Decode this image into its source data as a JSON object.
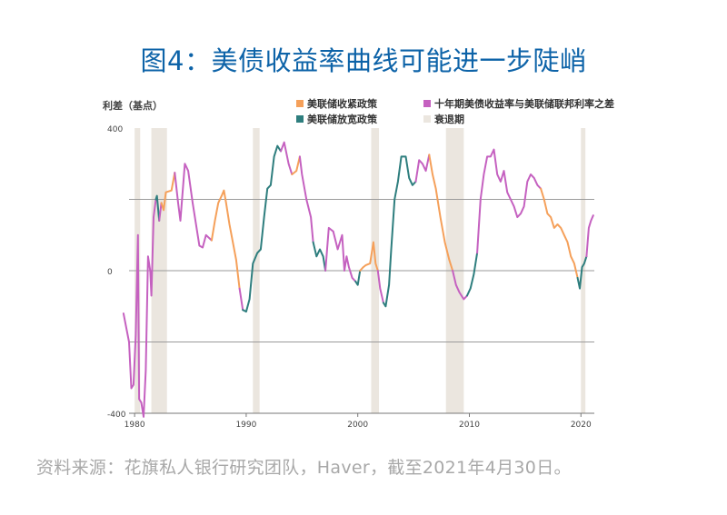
{
  "title": "图4：美债收益率曲线可能进一步陡峭",
  "source": "资料来源：花旗私人银行研究团队，Haver，截至2021年4月30日。",
  "colors": {
    "title": "#0d63a8",
    "tightening": "#f5a05a",
    "easing": "#2e7e7e",
    "spread": "#c561c0",
    "recession": "#ebe6df"
  },
  "chart_data": {
    "type": "line",
    "ylabel": "利差（基点）",
    "ylim": [
      -400,
      400
    ],
    "xlim": [
      1979.5,
      2021.2
    ],
    "y_ticks": [
      400,
      0,
      -400
    ],
    "y_gridlines": [
      200,
      0,
      -200
    ],
    "x_ticks": [
      1980,
      1990,
      2000,
      2010,
      2020
    ],
    "legend": [
      {
        "label": "美联储收紧政策",
        "key": "tightening"
      },
      {
        "label": "十年期美债收益率与美联储联邦利率之差",
        "key": "spread"
      },
      {
        "label": "美联储放宽政策",
        "key": "easing"
      },
      {
        "label": "衰退期",
        "key": "recession"
      }
    ],
    "recessions": [
      [
        1980.0,
        1980.5
      ],
      [
        1981.5,
        1982.9
      ],
      [
        1990.6,
        1991.2
      ],
      [
        2001.2,
        2001.9
      ],
      [
        2007.9,
        2009.5
      ],
      [
        2020.0,
        2020.4
      ]
    ],
    "segments": [
      {
        "phase": "spread",
        "points": [
          [
            1979.0,
            -120
          ],
          [
            1979.5,
            -200
          ],
          [
            1979.7,
            -330
          ],
          [
            1979.9,
            -320
          ],
          [
            1980.1,
            -180
          ],
          [
            1980.3,
            100
          ],
          [
            1980.4,
            -360
          ],
          [
            1980.6,
            -370
          ],
          [
            1980.8,
            -410
          ],
          [
            1981.0,
            -280
          ],
          [
            1981.2,
            40
          ],
          [
            1981.4,
            0
          ],
          [
            1981.5,
            -70
          ],
          [
            1981.7,
            150
          ],
          [
            1981.9,
            200
          ]
        ]
      },
      {
        "phase": "easing",
        "points": [
          [
            1981.9,
            200
          ],
          [
            1982.0,
            210
          ],
          [
            1982.2,
            140
          ]
        ]
      },
      {
        "phase": "spread",
        "points": [
          [
            1982.2,
            140
          ],
          [
            1982.4,
            190
          ]
        ]
      },
      {
        "phase": "tightening",
        "points": [
          [
            1982.4,
            190
          ],
          [
            1982.6,
            170
          ],
          [
            1982.8,
            220
          ],
          [
            1983.3,
            225
          ],
          [
            1983.6,
            275
          ]
        ]
      },
      {
        "phase": "spread",
        "points": [
          [
            1983.6,
            275
          ],
          [
            1983.9,
            190
          ],
          [
            1984.1,
            140
          ],
          [
            1984.5,
            300
          ],
          [
            1984.8,
            280
          ],
          [
            1985.2,
            190
          ],
          [
            1985.5,
            130
          ],
          [
            1985.8,
            70
          ],
          [
            1986.1,
            65
          ],
          [
            1986.4,
            100
          ],
          [
            1986.9,
            85
          ]
        ]
      },
      {
        "phase": "tightening",
        "points": [
          [
            1986.9,
            85
          ],
          [
            1987.2,
            140
          ],
          [
            1987.5,
            190
          ],
          [
            1987.8,
            210
          ],
          [
            1988.0,
            225
          ],
          [
            1988.2,
            190
          ],
          [
            1988.5,
            130
          ],
          [
            1988.8,
            80
          ],
          [
            1989.1,
            30
          ],
          [
            1989.4,
            -50
          ]
        ]
      },
      {
        "phase": "spread",
        "points": [
          [
            1989.4,
            -50
          ],
          [
            1989.7,
            -110
          ]
        ]
      },
      {
        "phase": "easing",
        "points": [
          [
            1989.7,
            -110
          ],
          [
            1990.0,
            -115
          ],
          [
            1990.3,
            -80
          ],
          [
            1990.6,
            20
          ],
          [
            1991.0,
            50
          ],
          [
            1991.3,
            60
          ],
          [
            1991.6,
            150
          ],
          [
            1991.9,
            230
          ],
          [
            1992.2,
            240
          ],
          [
            1992.5,
            320
          ],
          [
            1992.8,
            350
          ],
          [
            1993.1,
            335
          ]
        ]
      },
      {
        "phase": "spread",
        "points": [
          [
            1993.1,
            335
          ],
          [
            1993.4,
            360
          ],
          [
            1993.8,
            300
          ],
          [
            1994.1,
            270
          ]
        ]
      },
      {
        "phase": "tightening",
        "points": [
          [
            1994.1,
            270
          ],
          [
            1994.5,
            280
          ],
          [
            1994.8,
            320
          ]
        ]
      },
      {
        "phase": "spread",
        "points": [
          [
            1994.8,
            320
          ],
          [
            1995.0,
            270
          ],
          [
            1995.4,
            200
          ],
          [
            1995.8,
            150
          ],
          [
            1996.0,
            80
          ]
        ]
      },
      {
        "phase": "easing",
        "points": [
          [
            1996.0,
            80
          ],
          [
            1996.3,
            40
          ],
          [
            1996.6,
            60
          ],
          [
            1996.9,
            40
          ],
          [
            1997.1,
            0
          ]
        ]
      },
      {
        "phase": "spread",
        "points": [
          [
            1997.1,
            0
          ],
          [
            1997.4,
            120
          ],
          [
            1997.8,
            110
          ],
          [
            1998.2,
            60
          ],
          [
            1998.6,
            100
          ],
          [
            1998.8,
            0
          ],
          [
            1999.0,
            40
          ],
          [
            1999.2,
            10
          ],
          [
            1999.5,
            -20
          ],
          [
            1999.8,
            -30
          ]
        ]
      },
      {
        "phase": "easing",
        "points": [
          [
            1999.8,
            -30
          ],
          [
            2000.0,
            -40
          ],
          [
            2000.2,
            0
          ]
        ]
      },
      {
        "phase": "tightening",
        "points": [
          [
            2000.2,
            0
          ],
          [
            2000.5,
            10
          ],
          [
            2000.7,
            15
          ],
          [
            2001.1,
            20
          ],
          [
            2001.4,
            80
          ],
          [
            2001.6,
            20
          ],
          [
            2001.8,
            0
          ]
        ]
      },
      {
        "phase": "spread",
        "points": [
          [
            2001.8,
            0
          ],
          [
            2002.0,
            -50
          ],
          [
            2002.3,
            -90
          ]
        ]
      },
      {
        "phase": "easing",
        "points": [
          [
            2002.3,
            -90
          ],
          [
            2002.5,
            -100
          ],
          [
            2002.8,
            -40
          ],
          [
            2003.0,
            60
          ],
          [
            2003.3,
            200
          ],
          [
            2003.6,
            250
          ],
          [
            2003.9,
            320
          ],
          [
            2004.3,
            320
          ],
          [
            2004.6,
            260
          ],
          [
            2004.9,
            240
          ],
          [
            2005.2,
            250
          ]
        ]
      },
      {
        "phase": "spread",
        "points": [
          [
            2005.2,
            250
          ],
          [
            2005.5,
            310
          ],
          [
            2005.8,
            300
          ],
          [
            2006.1,
            280
          ],
          [
            2006.4,
            325
          ]
        ]
      },
      {
        "phase": "tightening",
        "points": [
          [
            2006.4,
            325
          ],
          [
            2006.7,
            270
          ],
          [
            2007.0,
            230
          ],
          [
            2007.4,
            150
          ],
          [
            2007.8,
            80
          ],
          [
            2008.2,
            30
          ],
          [
            2008.5,
            0
          ]
        ]
      },
      {
        "phase": "spread",
        "points": [
          [
            2008.5,
            0
          ],
          [
            2008.8,
            -40
          ],
          [
            2009.1,
            -60
          ],
          [
            2009.5,
            -80
          ],
          [
            2009.8,
            -70
          ]
        ]
      },
      {
        "phase": "easing",
        "points": [
          [
            2009.8,
            -70
          ],
          [
            2010.1,
            -50
          ],
          [
            2010.4,
            -10
          ],
          [
            2010.7,
            50
          ]
        ]
      },
      {
        "phase": "spread",
        "points": [
          [
            2010.7,
            50
          ],
          [
            2011.0,
            200
          ],
          [
            2011.3,
            270
          ],
          [
            2011.6,
            320
          ],
          [
            2011.9,
            320
          ],
          [
            2012.2,
            340
          ],
          [
            2012.5,
            270
          ],
          [
            2012.8,
            250
          ],
          [
            2013.1,
            280
          ],
          [
            2013.4,
            220
          ],
          [
            2013.7,
            200
          ],
          [
            2014.0,
            180
          ],
          [
            2014.3,
            150
          ],
          [
            2014.6,
            160
          ],
          [
            2014.9,
            180
          ],
          [
            2015.2,
            250
          ],
          [
            2015.5,
            270
          ],
          [
            2015.8,
            260
          ],
          [
            2016.1,
            240
          ],
          [
            2016.4,
            230
          ]
        ]
      },
      {
        "phase": "tightening",
        "points": [
          [
            2016.4,
            230
          ],
          [
            2016.7,
            200
          ],
          [
            2017.0,
            160
          ],
          [
            2017.3,
            150
          ],
          [
            2017.6,
            120
          ],
          [
            2017.9,
            130
          ],
          [
            2018.2,
            120
          ],
          [
            2018.5,
            100
          ],
          [
            2018.8,
            80
          ],
          [
            2019.1,
            40
          ],
          [
            2019.4,
            20
          ],
          [
            2019.7,
            -20
          ]
        ]
      },
      {
        "phase": "easing",
        "points": [
          [
            2019.7,
            -20
          ],
          [
            2019.9,
            -50
          ],
          [
            2020.1,
            10
          ],
          [
            2020.3,
            20
          ],
          [
            2020.5,
            40
          ]
        ]
      },
      {
        "phase": "spread",
        "points": [
          [
            2020.5,
            40
          ],
          [
            2020.7,
            120
          ],
          [
            2020.9,
            140
          ],
          [
            2021.1,
            155
          ]
        ]
      }
    ]
  }
}
